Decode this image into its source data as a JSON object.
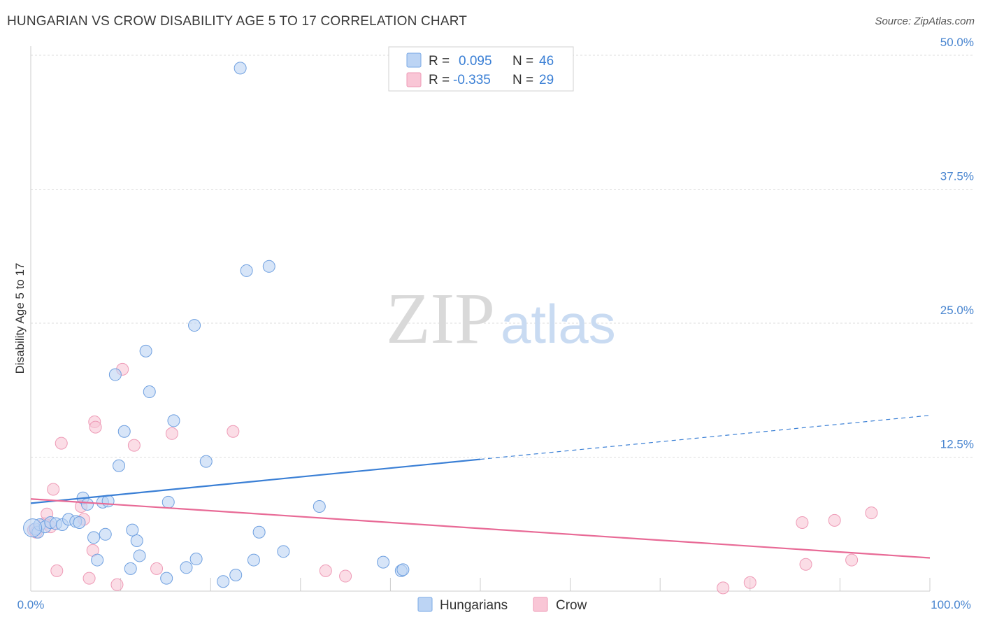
{
  "header": {
    "title": "HUNGARIAN VS CROW DISABILITY AGE 5 TO 17 CORRELATION CHART",
    "source": "Source: ZipAtlas.com"
  },
  "watermark": {
    "part1": "ZIP",
    "part2": "atlas"
  },
  "colors": {
    "blue": "#3a7fd5",
    "blue_fill": "#bcd4f4",
    "pink": "#e86a96",
    "pink_fill": "#f9c6d6",
    "tick": "#4a86d0",
    "grid": "#dddddd"
  },
  "legend": {
    "rows": [
      {
        "r_label": "R =",
        "r_value": "0.095",
        "n_label": "N =",
        "n_value": "46"
      },
      {
        "r_label": "R =",
        "r_value": "-0.335",
        "n_label": "N =",
        "n_value": "29"
      }
    ]
  },
  "bottom_legend": {
    "series1": "Hungarians",
    "series2": "Crow"
  },
  "chart_data": {
    "type": "scatter",
    "title": "HUNGARIAN VS CROW DISABILITY AGE 5 TO 17 CORRELATION CHART",
    "xlabel": "",
    "ylabel": "Disability Age 5 to 17",
    "xlim": [
      0,
      100
    ],
    "ylim": [
      0,
      52
    ],
    "x_tick_labels": [
      "0.0%",
      "100.0%"
    ],
    "y_ticks": [
      12.5,
      25.0,
      37.5,
      50.0
    ],
    "y_tick_labels": [
      "12.5%",
      "25.0%",
      "37.5%",
      "50.0%"
    ],
    "series": [
      {
        "name": "Hungarians",
        "r": 0.095,
        "n": 46,
        "trend": {
          "x0": 0,
          "y0": 8.2,
          "x1": 50,
          "y1": 12.3,
          "dash_to_x": 100,
          "dash_to_y": 16.4
        },
        "points": [
          [
            0.5,
            5.8
          ],
          [
            0.8,
            5.5
          ],
          [
            1.0,
            6.2
          ],
          [
            1.6,
            6.0
          ],
          [
            2.2,
            6.4
          ],
          [
            2.8,
            6.3
          ],
          [
            3.5,
            6.2
          ],
          [
            4.2,
            6.7
          ],
          [
            5.0,
            6.5
          ],
          [
            5.4,
            6.4
          ],
          [
            5.8,
            8.7
          ],
          [
            6.3,
            8.1
          ],
          [
            7.0,
            5.0
          ],
          [
            7.4,
            2.9
          ],
          [
            8.0,
            8.3
          ],
          [
            8.3,
            5.3
          ],
          [
            8.6,
            8.4
          ],
          [
            9.4,
            20.2
          ],
          [
            9.8,
            11.7
          ],
          [
            10.4,
            14.9
          ],
          [
            11.1,
            2.1
          ],
          [
            11.3,
            5.7
          ],
          [
            11.8,
            4.7
          ],
          [
            12.1,
            3.3
          ],
          [
            12.8,
            22.4
          ],
          [
            13.2,
            18.6
          ],
          [
            15.1,
            1.2
          ],
          [
            15.3,
            8.3
          ],
          [
            15.9,
            15.9
          ],
          [
            17.3,
            2.2
          ],
          [
            18.2,
            24.8
          ],
          [
            18.4,
            3.0
          ],
          [
            19.5,
            12.1
          ],
          [
            21.4,
            0.9
          ],
          [
            22.8,
            1.5
          ],
          [
            23.3,
            48.8
          ],
          [
            24.0,
            29.9
          ],
          [
            24.8,
            2.9
          ],
          [
            25.4,
            5.5
          ],
          [
            26.5,
            30.3
          ],
          [
            28.1,
            3.7
          ],
          [
            32.1,
            7.9
          ],
          [
            39.2,
            2.7
          ],
          [
            41.2,
            1.9
          ],
          [
            41.4,
            2.0
          ],
          [
            0.2,
            5.9
          ]
        ]
      },
      {
        "name": "Crow",
        "r": -0.335,
        "n": 29,
        "trend": {
          "x0": 0,
          "y0": 8.6,
          "x1": 100,
          "y1": 3.1
        },
        "points": [
          [
            0.3,
            5.7
          ],
          [
            1.5,
            6.3
          ],
          [
            1.8,
            7.2
          ],
          [
            2.2,
            6.0
          ],
          [
            2.5,
            9.5
          ],
          [
            2.9,
            1.9
          ],
          [
            3.4,
            13.8
          ],
          [
            5.6,
            7.9
          ],
          [
            5.9,
            6.7
          ],
          [
            6.5,
            1.2
          ],
          [
            6.9,
            3.8
          ],
          [
            7.1,
            15.8
          ],
          [
            7.2,
            15.3
          ],
          [
            9.6,
            0.6
          ],
          [
            10.2,
            20.7
          ],
          [
            11.5,
            13.6
          ],
          [
            14.0,
            2.1
          ],
          [
            15.7,
            14.7
          ],
          [
            22.5,
            14.9
          ],
          [
            32.8,
            1.9
          ],
          [
            35.0,
            1.4
          ],
          [
            77.0,
            0.3
          ],
          [
            80.0,
            0.8
          ],
          [
            85.8,
            6.4
          ],
          [
            86.2,
            2.5
          ],
          [
            89.4,
            6.6
          ],
          [
            91.3,
            2.9
          ],
          [
            93.5,
            7.3
          ],
          [
            0.6,
            5.5
          ]
        ]
      }
    ]
  }
}
